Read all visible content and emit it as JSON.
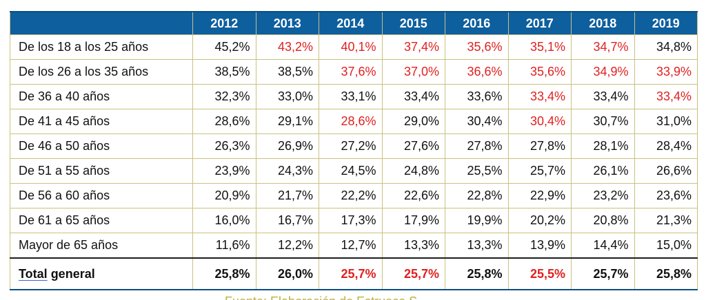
{
  "chart_data": {
    "type": "table",
    "categories": [
      "2012",
      "2013",
      "2014",
      "2015",
      "2016",
      "2017",
      "2018",
      "2019"
    ],
    "rows": [
      {
        "label": "De los 18 a los 25 años",
        "values": [
          "45,2%",
          "43,2%",
          "40,1%",
          "37,4%",
          "35,6%",
          "35,1%",
          "34,7%",
          "34,8%"
        ],
        "highlight": [
          false,
          true,
          true,
          true,
          true,
          true,
          true,
          false
        ]
      },
      {
        "label": "De los 26 a los 35 años",
        "values": [
          "38,5%",
          "38,5%",
          "37,6%",
          "37,0%",
          "36,6%",
          "35,6%",
          "34,9%",
          "33,9%"
        ],
        "highlight": [
          false,
          false,
          true,
          true,
          true,
          true,
          true,
          true
        ]
      },
      {
        "label": "De 36 a 40 años",
        "values": [
          "32,3%",
          "33,0%",
          "33,1%",
          "33,4%",
          "33,6%",
          "33,4%",
          "33,4%",
          "33,4%"
        ],
        "highlight": [
          false,
          false,
          false,
          false,
          false,
          true,
          false,
          true
        ]
      },
      {
        "label": "De 41 a 45 años",
        "values": [
          "28,6%",
          "29,1%",
          "28,6%",
          "29,0%",
          "30,4%",
          "30,4%",
          "30,7%",
          "31,0%"
        ],
        "highlight": [
          false,
          false,
          true,
          false,
          false,
          true,
          false,
          false
        ]
      },
      {
        "label": "De 46 a 50 años",
        "values": [
          "26,3%",
          "26,9%",
          "27,2%",
          "27,6%",
          "27,8%",
          "27,8%",
          "28,1%",
          "28,4%"
        ],
        "highlight": [
          false,
          false,
          false,
          false,
          false,
          false,
          false,
          false
        ]
      },
      {
        "label": "De 51 a 55 años",
        "values": [
          "23,9%",
          "24,3%",
          "24,5%",
          "24,8%",
          "25,5%",
          "25,7%",
          "26,1%",
          "26,6%"
        ],
        "highlight": [
          false,
          false,
          false,
          false,
          false,
          false,
          false,
          false
        ]
      },
      {
        "label": "De 56 a 60 años",
        "values": [
          "20,9%",
          "21,7%",
          "22,2%",
          "22,6%",
          "22,8%",
          "22,9%",
          "23,2%",
          "23,6%"
        ],
        "highlight": [
          false,
          false,
          false,
          false,
          false,
          false,
          false,
          false
        ]
      },
      {
        "label": "De 61 a 65 años",
        "values": [
          "16,0%",
          "16,7%",
          "17,3%",
          "17,9%",
          "19,9%",
          "20,2%",
          "20,8%",
          "21,3%"
        ],
        "highlight": [
          false,
          false,
          false,
          false,
          false,
          false,
          false,
          false
        ]
      },
      {
        "label": "Mayor de 65 años",
        "values": [
          "11,6%",
          "12,2%",
          "12,7%",
          "13,3%",
          "13,3%",
          "13,9%",
          "14,4%",
          "15,0%"
        ],
        "highlight": [
          false,
          false,
          false,
          false,
          false,
          false,
          false,
          false
        ]
      }
    ],
    "total": {
      "label_word1": "Total",
      "label_word2": "general",
      "values": [
        "25,8%",
        "26,0%",
        "25,7%",
        "25,7%",
        "25,8%",
        "25,5%",
        "25,7%",
        "25,8%"
      ],
      "highlight": [
        false,
        false,
        true,
        true,
        false,
        true,
        false,
        false
      ]
    }
  },
  "colors": {
    "header_bg": "#0e5f9e",
    "header_text": "#ffffff",
    "highlight_text": "#e02020",
    "grid": "#c9c27e",
    "source_text": "#b9b23a"
  },
  "source_text": "Fuente: Elaboración de Estrueco S..."
}
